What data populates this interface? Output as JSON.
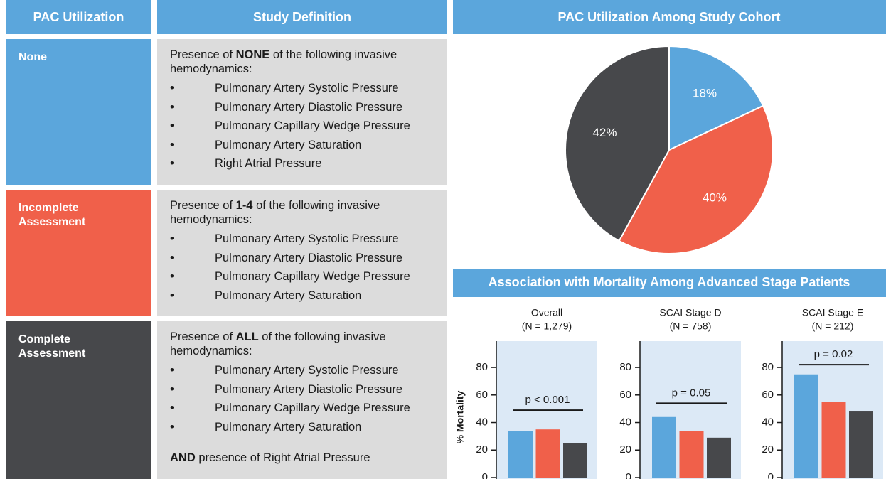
{
  "table": {
    "headers": [
      "PAC Utilization",
      "Study Definition"
    ],
    "rows": [
      {
        "label": "None",
        "intro": [
          "Presence of ",
          "NONE",
          " of the following invasive hemodynamics:"
        ],
        "items": [
          "Pulmonary Artery Systolic Pressure",
          "Pulmonary Artery Diastolic Pressure",
          "Pulmonary Capillary Wedge Pressure",
          "Pulmonary Artery Saturation",
          "Right Atrial Pressure"
        ]
      },
      {
        "label": "Incomplete Assessment",
        "intro": [
          "Presence of ",
          "1-4",
          " of the following invasive hemodynamics:"
        ],
        "items": [
          "Pulmonary Artery Systolic Pressure",
          "Pulmonary Artery Diastolic Pressure",
          "Pulmonary Capillary Wedge Pressure",
          "Pulmonary Artery Saturation"
        ]
      },
      {
        "label": "Complete Assessment",
        "intro": [
          "Presence of ",
          "ALL",
          " of the following invasive hemodynamics:"
        ],
        "items": [
          "Pulmonary Artery Systolic Pressure",
          "Pulmonary Artery Diastolic Pressure",
          "Pulmonary Capillary Wedge Pressure",
          "Pulmonary Artery Saturation"
        ],
        "footer": [
          "AND",
          " presence of Right Atrial Pressure"
        ]
      }
    ]
  },
  "section_title": "Association with Mortality Among Advanced Stage Patients",
  "chart_data": [
    {
      "type": "pie",
      "title": "PAC Utilization Among Study Cohort",
      "values": [
        18,
        40,
        42
      ],
      "value_labels": [
        "18%",
        "40%",
        "42%"
      ],
      "colors": [
        "#5ba6dc",
        "#f0604a",
        "#47484b"
      ]
    },
    {
      "type": "bar",
      "title": "Overall",
      "subtitle": "(N = 1,279)",
      "ylabel": "% Mortality",
      "categories": [
        null,
        null,
        null
      ],
      "values": [
        34,
        35,
        25
      ],
      "colors": [
        "#5ba6dc",
        "#f0604a",
        "#47484b"
      ],
      "ylim": [
        0,
        95
      ],
      "yticks": [
        0,
        20,
        40,
        60,
        80
      ],
      "annotation": "p < 0.001"
    },
    {
      "type": "bar",
      "title": "SCAI Stage D",
      "subtitle": "(N = 758)",
      "categories": [
        null,
        null,
        null
      ],
      "values": [
        44,
        34,
        29
      ],
      "colors": [
        "#5ba6dc",
        "#f0604a",
        "#47484b"
      ],
      "ylim": [
        0,
        95
      ],
      "yticks": [
        0,
        20,
        40,
        60,
        80
      ],
      "annotation": "p = 0.05"
    },
    {
      "type": "bar",
      "title": "SCAI Stage E",
      "subtitle": "(N = 212)",
      "categories": [
        null,
        null,
        null
      ],
      "values": [
        75,
        55,
        48
      ],
      "colors": [
        "#5ba6dc",
        "#f0604a",
        "#47484b"
      ],
      "ylim": [
        0,
        95
      ],
      "yticks": [
        0,
        20,
        40,
        60,
        80
      ],
      "annotation": "p = 0.02"
    }
  ]
}
